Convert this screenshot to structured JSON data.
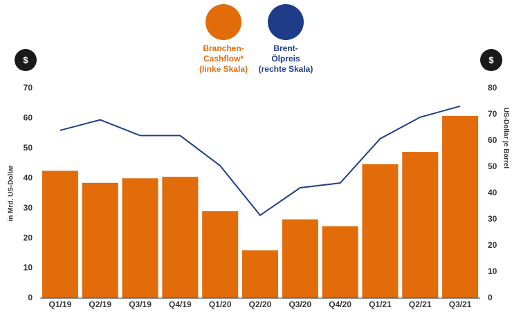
{
  "chart_data": {
    "type": "bar_line",
    "categories": [
      "Q1/19",
      "Q2/19",
      "Q3/19",
      "Q4/19",
      "Q1/20",
      "Q2/20",
      "Q3/20",
      "Q4/20",
      "Q1/21",
      "Q2/21",
      "Q3/21"
    ],
    "series": [
      {
        "name": "Branchen-\nCashflow*\n(linke Skala)",
        "color": "#e36c0a",
        "type": "bar",
        "values": [
          42.5,
          38.5,
          40,
          40.5,
          29,
          16,
          26.3,
          24,
          44.7,
          48.8,
          60.8
        ]
      },
      {
        "name": "Brent-\nÖlpreis\n(rechte Skala)",
        "color": "#1f3c88",
        "type": "line",
        "axis": "y2",
        "values": [
          64,
          68,
          62,
          62,
          50.5,
          31.6,
          42.1,
          43.9,
          60.8,
          69,
          73.2
        ]
      }
    ],
    "ylabel": "in Mrd. US-Dollar",
    "y2label": "US-Dollar je Barrel",
    "y_icon": "$",
    "y2_icon": "$",
    "ylim": [
      0,
      70
    ],
    "yticks": [
      0,
      10,
      20,
      30,
      40,
      50,
      60,
      70
    ],
    "y2lim": [
      0,
      80
    ],
    "y2ticks": [
      0,
      10,
      20,
      30,
      40,
      50,
      60,
      70,
      80
    ],
    "grid": false
  }
}
